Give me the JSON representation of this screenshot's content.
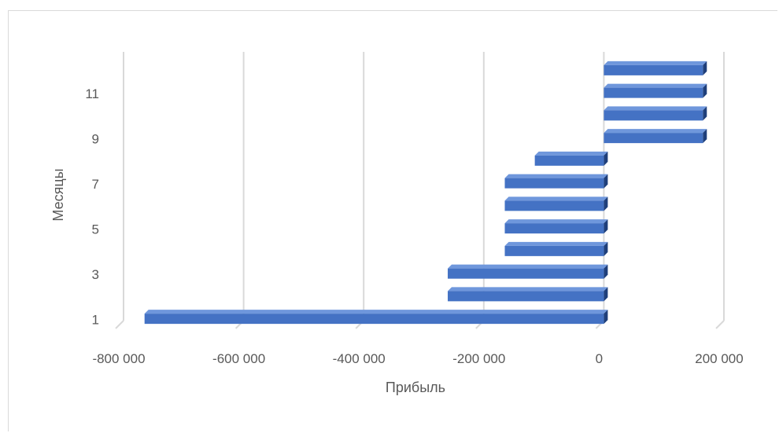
{
  "chart_data": {
    "type": "bar",
    "orientation": "horizontal",
    "categories": [
      "1",
      "2",
      "3",
      "4",
      "5",
      "6",
      "7",
      "8",
      "9",
      "10",
      "11",
      "12"
    ],
    "category_tick_labels": [
      "1",
      "3",
      "5",
      "7",
      "9",
      "11"
    ],
    "values": [
      -765000,
      -260000,
      -260000,
      -165000,
      -165000,
      -165000,
      -165000,
      -115000,
      165000,
      165000,
      165000,
      165000
    ],
    "xlabel": "Прибыль",
    "ylabel": "Месяцы",
    "xlim": [
      -800000,
      200000
    ],
    "x_ticks": [
      -800000,
      -600000,
      -400000,
      -200000,
      0,
      200000
    ],
    "x_tick_labels": [
      "-800 000",
      "-600 000",
      "-400 000",
      "-200 000",
      "0",
      "200 000"
    ],
    "grid": "vertical",
    "bar_color": "#4472c4",
    "bar_top_color": "#6f97dc",
    "bar_side_color": "#1f3f7a",
    "grid_color": "#d9d9d9"
  }
}
